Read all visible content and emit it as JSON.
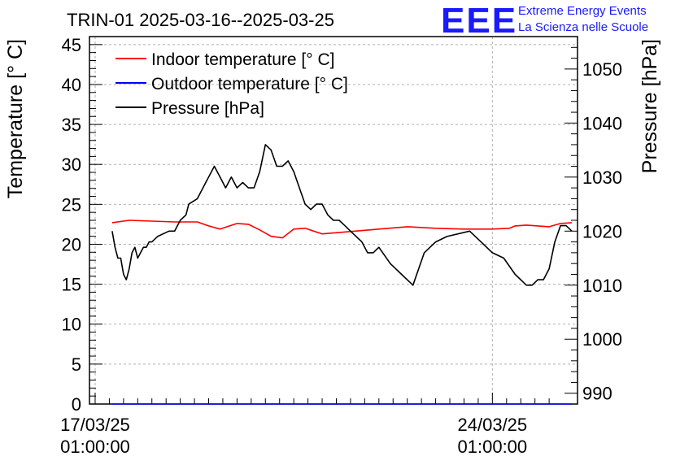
{
  "chart_data": {
    "type": "line",
    "title": "TRIN-01 2025-03-16--2025-03-25",
    "logo": {
      "text": "EEE",
      "line1": "Extreme Energy Events",
      "line2": "La Scienza nelle Scuole"
    },
    "ylabel": "Temperature [° C]",
    "y2label": "Pressure [hPa]",
    "ylim": [
      0,
      46
    ],
    "y2lim": [
      988,
      1056
    ],
    "xlim": [
      -0.1,
      8.5
    ],
    "yticks": [
      "0",
      "5",
      "10",
      "15",
      "20",
      "25",
      "30",
      "35",
      "40",
      "45"
    ],
    "y2ticks": [
      "990",
      "1000",
      "1010",
      "1020",
      "1030",
      "1040",
      "1050"
    ],
    "xticks": [
      {
        "x": 0,
        "line1": "17/03/25",
        "line2": "01:00:00"
      },
      {
        "x": 7,
        "line1": "24/03/25",
        "line2": "01:00:00"
      }
    ],
    "grid": true,
    "legend_position": "top-left",
    "colors": {
      "indoor": "#ff0000",
      "outdoor": "#0000ff",
      "pressure": "#000000"
    },
    "series": [
      {
        "name": "Indoor temperature [° C]",
        "axis": "left",
        "color": "#ff0000",
        "x": [
          0.3,
          0.6,
          1.0,
          1.4,
          1.8,
          2.0,
          2.2,
          2.5,
          2.7,
          2.9,
          3.1,
          3.3,
          3.5,
          3.7,
          4.0,
          4.5,
          5.0,
          5.5,
          6.0,
          6.5,
          7.0,
          7.3,
          7.4,
          7.6,
          8.0,
          8.2,
          8.4
        ],
        "y": [
          22.7,
          23.0,
          22.9,
          22.8,
          22.8,
          22.3,
          21.9,
          22.6,
          22.5,
          21.8,
          21.0,
          20.8,
          21.9,
          22.0,
          21.3,
          21.6,
          21.9,
          22.2,
          22.0,
          21.9,
          21.9,
          22.0,
          22.3,
          22.4,
          22.2,
          22.6,
          22.7
        ]
      },
      {
        "name": "Outdoor temperature [° C]",
        "axis": "left",
        "color": "#0000ff",
        "x": [
          0.3,
          8.4
        ],
        "y": [
          0.0,
          0.0
        ]
      },
      {
        "name": "Pressure [hPa]",
        "axis": "right",
        "color": "#000000",
        "x": [
          0.3,
          0.35,
          0.4,
          0.45,
          0.5,
          0.55,
          0.6,
          0.65,
          0.7,
          0.75,
          0.8,
          0.85,
          0.9,
          0.95,
          1.0,
          1.1,
          1.3,
          1.4,
          1.5,
          1.6,
          1.65,
          1.8,
          1.9,
          2.1,
          2.2,
          2.3,
          2.4,
          2.5,
          2.6,
          2.7,
          2.8,
          2.9,
          3.0,
          3.1,
          3.2,
          3.3,
          3.4,
          3.5,
          3.6,
          3.7,
          3.8,
          3.9,
          4.0,
          4.1,
          4.2,
          4.3,
          4.4,
          4.5,
          4.6,
          4.7,
          4.8,
          4.9,
          5.0,
          5.2,
          5.3,
          5.4,
          5.6,
          5.8,
          6.0,
          6.2,
          6.6,
          6.8,
          7.0,
          7.2,
          7.4,
          7.6,
          7.7,
          7.8,
          7.9,
          8.0,
          8.1,
          8.2,
          8.3,
          8.4
        ],
        "y": [
          1020,
          1017,
          1015,
          1015,
          1012,
          1011,
          1013,
          1016,
          1017,
          1015,
          1016,
          1017,
          1017,
          1018,
          1018,
          1019,
          1020,
          1020,
          1022,
          1023,
          1025,
          1026,
          1028,
          1032,
          1030,
          1028,
          1030,
          1028,
          1029,
          1028,
          1028,
          1031,
          1036,
          1035,
          1032,
          1032,
          1033,
          1031,
          1028,
          1025,
          1024,
          1025,
          1025,
          1023,
          1022,
          1022,
          1021,
          1020,
          1019,
          1018,
          1016,
          1016,
          1017,
          1014,
          1013,
          1012,
          1010,
          1016,
          1018,
          1019,
          1020,
          1018,
          1016,
          1015,
          1012,
          1010,
          1010,
          1011,
          1011,
          1013,
          1018,
          1021,
          1021,
          1020
        ]
      }
    ]
  }
}
